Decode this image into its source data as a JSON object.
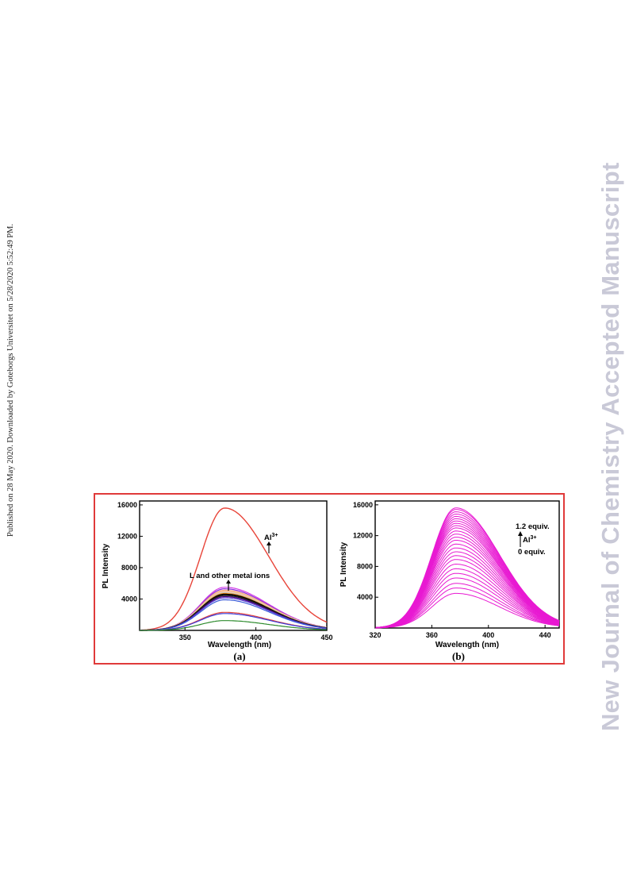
{
  "side_note": "Published on 28 May 2020. Downloaded by Goteborgs Universitet on 5/28/2020 5:52:49 PM.",
  "watermark": "New Journal of Chemistry Accepted Manuscript",
  "chart_data": [
    {
      "id": "a",
      "type": "line",
      "caption": "(a)",
      "xlabel": "Wavelength (nm)",
      "ylabel": "PL Intensity",
      "xlim": [
        318,
        450
      ],
      "ylim": [
        0,
        16500
      ],
      "xticks": [
        350,
        400,
        450
      ],
      "yticks": [
        4000,
        8000,
        12000,
        16000
      ],
      "annotations": {
        "al_label": "Al",
        "al_sup": "3+",
        "others_label": "L and other metal ions"
      },
      "peak_nm": 378,
      "series": [
        {
          "peak": 15600,
          "color": "#e8453a",
          "width": 1.4
        },
        {
          "peak": 5500,
          "color": "#d33ee6",
          "width": 1.2
        },
        {
          "peak": 5300,
          "color": "#8a2be2",
          "width": 1.2
        },
        {
          "peak": 5100,
          "color": "#f4b183",
          "width": 1.6
        },
        {
          "peak": 4950,
          "color": "#f7c7a1",
          "width": 1.6
        },
        {
          "peak": 4800,
          "color": "#c0c0c0",
          "width": 1.2
        },
        {
          "peak": 4700,
          "color": "#ff8c00",
          "width": 1.2
        },
        {
          "peak": 4600,
          "color": "#000000",
          "width": 1.6
        },
        {
          "peak": 4450,
          "color": "#222222",
          "width": 1.6
        },
        {
          "peak": 4300,
          "color": "#4b0082",
          "width": 1.2
        },
        {
          "peak": 4150,
          "color": "#5a3fd0",
          "width": 1.2
        },
        {
          "peak": 3900,
          "color": "#3a5bd9",
          "width": 1.2
        },
        {
          "peak": 2300,
          "color": "#e8453a",
          "width": 1.2
        },
        {
          "peak": 2150,
          "color": "#3a3ad9",
          "width": 1.2
        },
        {
          "peak": 1250,
          "color": "#2e8b2e",
          "width": 1.2
        }
      ]
    },
    {
      "id": "b",
      "type": "line",
      "caption": "(b)",
      "xlabel": "Wavelength (nm)",
      "ylabel": "PL Intensity",
      "xlim": [
        320,
        450
      ],
      "ylim": [
        0,
        16500
      ],
      "xticks": [
        320,
        360,
        400,
        440
      ],
      "yticks": [
        4000,
        8000,
        12000,
        16000
      ],
      "annotations": {
        "top_label": "1.2 equiv.",
        "al_label": "Al",
        "al_sup": "3+",
        "bottom_label": "0 equiv."
      },
      "peak_nm": 377,
      "color": "#e819d2",
      "series_peaks": [
        4500,
        5200,
        5800,
        6500,
        7100,
        7700,
        8300,
        8900,
        9400,
        9900,
        10400,
        10900,
        11400,
        11800,
        12200,
        12600,
        13000,
        13300,
        13600,
        13900,
        14200,
        14500,
        14800,
        15100,
        15400,
        15600
      ]
    }
  ]
}
